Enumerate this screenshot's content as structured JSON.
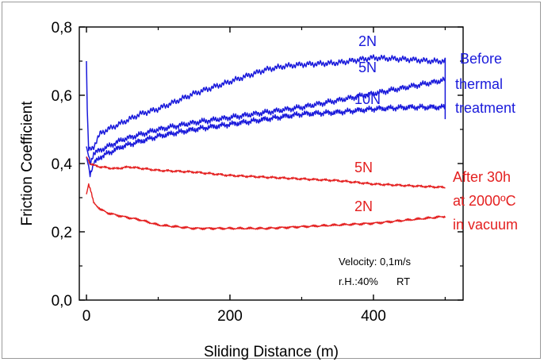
{
  "chart_data": {
    "type": "line",
    "xlabel": "Sliding Distance (m)",
    "ylabel": "Friction Coefficient",
    "xlim": [
      -10,
      525
    ],
    "ylim": [
      0.0,
      0.8
    ],
    "xticks": [
      0,
      200,
      400
    ],
    "xtick_labels": [
      "0",
      "200",
      "400"
    ],
    "yticks": [
      0.0,
      0.2,
      0.4,
      0.6,
      0.8
    ],
    "ytick_labels": [
      "0,0",
      "0,2",
      "0,4",
      "0,6",
      "0,8"
    ],
    "grid": false,
    "legend": "none",
    "series": [
      {
        "name": "2N",
        "color": "#1a1adb",
        "x": [
          0,
          1,
          3,
          5,
          10,
          20,
          30,
          50,
          75,
          100,
          150,
          200,
          250,
          275,
          300,
          350,
          400,
          450,
          480,
          500
        ],
        "y": [
          0.7,
          0.56,
          0.44,
          0.44,
          0.45,
          0.49,
          0.5,
          0.52,
          0.545,
          0.56,
          0.605,
          0.64,
          0.675,
          0.685,
          0.69,
          0.695,
          0.71,
          0.705,
          0.7,
          0.7
        ]
      },
      {
        "name": "5N",
        "color": "#1a1adb",
        "x": [
          0,
          5,
          10,
          20,
          50,
          100,
          150,
          200,
          250,
          300,
          350,
          400,
          450,
          500
        ],
        "y": [
          0.45,
          0.4,
          0.43,
          0.44,
          0.47,
          0.5,
          0.52,
          0.535,
          0.55,
          0.565,
          0.585,
          0.605,
          0.625,
          0.645
        ]
      },
      {
        "name": "10N",
        "color": "#1a1adb",
        "x": [
          0,
          5,
          10,
          20,
          50,
          100,
          150,
          200,
          250,
          300,
          350,
          400,
          450,
          500
        ],
        "y": [
          0.42,
          0.37,
          0.4,
          0.42,
          0.45,
          0.48,
          0.5,
          0.515,
          0.53,
          0.545,
          0.55,
          0.56,
          0.565,
          0.565
        ]
      },
      {
        "name": "5N",
        "color": "#e41f1f",
        "x": [
          0,
          5,
          10,
          20,
          40,
          60,
          80,
          100,
          150,
          200,
          250,
          300,
          350,
          400,
          450,
          500
        ],
        "y": [
          0.42,
          0.4,
          0.395,
          0.39,
          0.385,
          0.39,
          0.385,
          0.38,
          0.375,
          0.365,
          0.36,
          0.355,
          0.35,
          0.34,
          0.335,
          0.33
        ]
      },
      {
        "name": "2N",
        "color": "#e41f1f",
        "x": [
          0,
          3,
          6,
          10,
          20,
          30,
          50,
          75,
          100,
          150,
          200,
          250,
          300,
          350,
          400,
          450,
          500
        ],
        "y": [
          0.31,
          0.34,
          0.32,
          0.285,
          0.265,
          0.255,
          0.245,
          0.235,
          0.22,
          0.21,
          0.21,
          0.21,
          0.215,
          0.22,
          0.225,
          0.235,
          0.245
        ]
      }
    ],
    "annotations": {
      "blue_2n": "2N",
      "blue_5n": "5N",
      "blue_10n": "10N",
      "blue_group": [
        "Before",
        "thermal",
        "treatment"
      ],
      "red_5n": "5N",
      "red_2n": "2N",
      "red_group": [
        "After 30h",
        "at 2000ºC",
        "in vacuum"
      ],
      "conditions": [
        "Velocity: 0,1m/s",
        "r.H.:40%",
        "RT"
      ]
    }
  }
}
